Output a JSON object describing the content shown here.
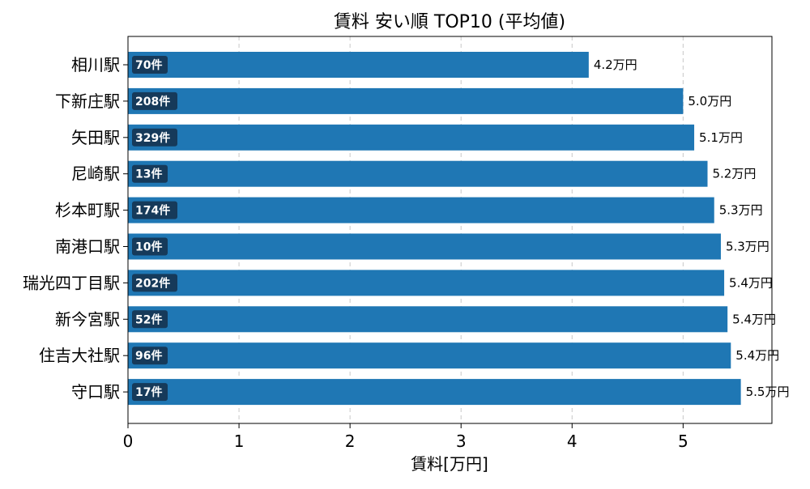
{
  "chart_data": {
    "type": "bar",
    "orientation": "horizontal",
    "title": "賃料 安い順 TOP10 (平均値)",
    "xlabel": "賃料[万円]",
    "ylabel": "",
    "xlim": [
      0,
      5.8
    ],
    "xticks": [
      "0",
      "1",
      "2",
      "3",
      "4",
      "5"
    ],
    "grid": "x-dashed",
    "bar_color": "#1f77b4",
    "badge_color": "#163a5a",
    "categories": [
      "相川駅",
      "下新庄駅",
      "矢田駅",
      "尼崎駅",
      "杉本町駅",
      "南港口駅",
      "瑞光四丁目駅",
      "新今宮駅",
      "住吉大社駅",
      "守口駅"
    ],
    "values": [
      4.15,
      5.0,
      5.1,
      5.22,
      5.28,
      5.34,
      5.37,
      5.4,
      5.43,
      5.52
    ],
    "value_labels": [
      "4.2万円",
      "5.0万円",
      "5.1万円",
      "5.2万円",
      "5.3万円",
      "5.3万円",
      "5.4万円",
      "5.4万円",
      "5.4万円",
      "5.5万円"
    ],
    "count_labels": [
      "70件",
      "208件",
      "329件",
      "13件",
      "174件",
      "10件",
      "202件",
      "52件",
      "96件",
      "17件"
    ]
  }
}
